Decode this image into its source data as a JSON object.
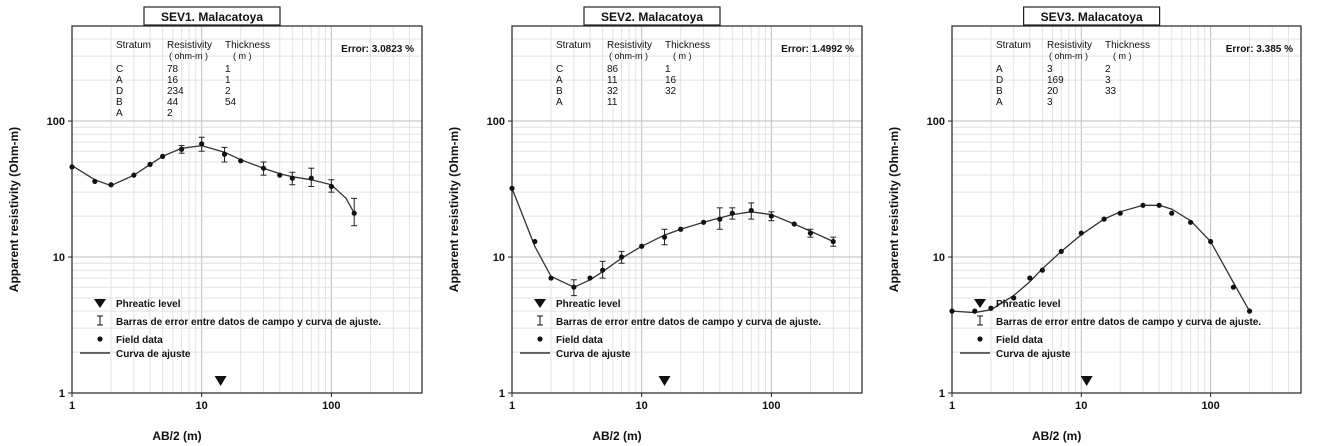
{
  "shared": {
    "legend": {
      "phreatic": "Phreatic level",
      "error_bars": "Barras de error entre datos de campo y curva de ajuste.",
      "field_data": "Field data",
      "fit_curve": "Curva de ajuste"
    },
    "table_headers": {
      "stratum": "Stratum",
      "resistivity": "Resistivity",
      "resistivity_unit": "( ohm-m )",
      "thickness": "Thickness",
      "thickness_unit": "( m )"
    }
  },
  "chart_data": [
    {
      "type": "scatter",
      "title": "SEV1. Malacatoya",
      "error_label": "Error: 3.0823 %",
      "xlabel": "AB/2 (m)",
      "ylabel": "Apparent resistivity (Ohm-m)",
      "x_scale": "log",
      "y_scale": "log",
      "xlim": [
        1,
        500
      ],
      "ylim": [
        1,
        500
      ],
      "x_ticks": [
        {
          "v": 1,
          "label": "1"
        },
        {
          "v": 10,
          "label": "10"
        },
        {
          "v": 100,
          "label": "100"
        }
      ],
      "y_ticks": [
        {
          "v": 1,
          "label": "1"
        },
        {
          "v": 10,
          "label": "10"
        },
        {
          "v": 100,
          "label": "100"
        }
      ],
      "grid": true,
      "legend_position": "bottom-left",
      "phreatic_x": 14,
      "layers": [
        {
          "stratum": "C",
          "resistivity": "78",
          "thickness": "1"
        },
        {
          "stratum": "A",
          "resistivity": "16",
          "thickness": "1"
        },
        {
          "stratum": "D",
          "resistivity": "234",
          "thickness": "2"
        },
        {
          "stratum": "B",
          "resistivity": "44",
          "thickness": "54"
        },
        {
          "stratum": "A",
          "resistivity": "2",
          "thickness": ""
        }
      ],
      "field_data": [
        {
          "x": 1,
          "y": 46
        },
        {
          "x": 1.5,
          "y": 36
        },
        {
          "x": 2,
          "y": 34
        },
        {
          "x": 3,
          "y": 40
        },
        {
          "x": 4,
          "y": 48
        },
        {
          "x": 5,
          "y": 55
        },
        {
          "x": 7,
          "y": 62,
          "err": [
            58,
            66
          ]
        },
        {
          "x": 10,
          "y": 68,
          "err": [
            60,
            76
          ]
        },
        {
          "x": 15,
          "y": 57,
          "err": [
            50,
            64
          ]
        },
        {
          "x": 20,
          "y": 51
        },
        {
          "x": 30,
          "y": 45,
          "err": [
            40,
            50
          ]
        },
        {
          "x": 40,
          "y": 40
        },
        {
          "x": 50,
          "y": 38,
          "err": [
            34,
            42
          ]
        },
        {
          "x": 70,
          "y": 38,
          "err": [
            33,
            45
          ]
        },
        {
          "x": 100,
          "y": 33,
          "err": [
            30,
            37
          ]
        },
        {
          "x": 150,
          "y": 21,
          "err": [
            17,
            27
          ]
        }
      ],
      "fit_curve": [
        [
          1,
          47
        ],
        [
          1.5,
          37
        ],
        [
          2,
          33.5
        ],
        [
          3,
          40
        ],
        [
          4,
          48
        ],
        [
          5,
          55
        ],
        [
          7,
          63
        ],
        [
          10,
          66
        ],
        [
          15,
          59
        ],
        [
          20,
          52
        ],
        [
          30,
          45
        ],
        [
          40,
          41
        ],
        [
          50,
          39
        ],
        [
          70,
          37
        ],
        [
          100,
          34
        ],
        [
          130,
          27
        ],
        [
          150,
          21
        ]
      ]
    },
    {
      "type": "scatter",
      "title": "SEV2. Malacatoya",
      "error_label": "Error: 1.4992 %",
      "xlabel": "AB/2 (m)",
      "ylabel": "Apparent resistivity (Ohm-m)",
      "x_scale": "log",
      "y_scale": "log",
      "xlim": [
        1,
        500
      ],
      "ylim": [
        1,
        500
      ],
      "x_ticks": [
        {
          "v": 1,
          "label": "1"
        },
        {
          "v": 10,
          "label": "10"
        },
        {
          "v": 100,
          "label": "100"
        }
      ],
      "y_ticks": [
        {
          "v": 1,
          "label": "1"
        },
        {
          "v": 10,
          "label": "10"
        },
        {
          "v": 100,
          "label": "100"
        }
      ],
      "grid": true,
      "legend_position": "bottom-left",
      "phreatic_x": 15,
      "layers": [
        {
          "stratum": "C",
          "resistivity": "86",
          "thickness": "1"
        },
        {
          "stratum": "A",
          "resistivity": "11",
          "thickness": "16"
        },
        {
          "stratum": "B",
          "resistivity": "32",
          "thickness": "32"
        },
        {
          "stratum": "A",
          "resistivity": "11",
          "thickness": ""
        }
      ],
      "field_data": [
        {
          "x": 1,
          "y": 32
        },
        {
          "x": 1.5,
          "y": 13
        },
        {
          "x": 2,
          "y": 7
        },
        {
          "x": 3,
          "y": 6,
          "err": [
            5.2,
            6.8
          ]
        },
        {
          "x": 4,
          "y": 7
        },
        {
          "x": 5,
          "y": 8,
          "err": [
            7,
            9.3
          ]
        },
        {
          "x": 7,
          "y": 10,
          "err": [
            9,
            11
          ]
        },
        {
          "x": 10,
          "y": 12
        },
        {
          "x": 15,
          "y": 14,
          "err": [
            12.3,
            16
          ]
        },
        {
          "x": 20,
          "y": 16
        },
        {
          "x": 30,
          "y": 18
        },
        {
          "x": 40,
          "y": 19,
          "err": [
            16,
            23
          ]
        },
        {
          "x": 50,
          "y": 21,
          "err": [
            19,
            23
          ]
        },
        {
          "x": 70,
          "y": 22,
          "err": [
            19,
            25
          ]
        },
        {
          "x": 100,
          "y": 20,
          "err": [
            18.5,
            21.5
          ]
        },
        {
          "x": 150,
          "y": 17.5
        },
        {
          "x": 200,
          "y": 15,
          "err": [
            14,
            16
          ]
        },
        {
          "x": 300,
          "y": 13,
          "err": [
            12,
            14
          ]
        }
      ],
      "fit_curve": [
        [
          1,
          32
        ],
        [
          1.5,
          12
        ],
        [
          2,
          7.2
        ],
        [
          3,
          6
        ],
        [
          4,
          6.8
        ],
        [
          5,
          7.8
        ],
        [
          7,
          9.8
        ],
        [
          10,
          12
        ],
        [
          15,
          14.5
        ],
        [
          20,
          16
        ],
        [
          30,
          18
        ],
        [
          50,
          20.5
        ],
        [
          70,
          21.5
        ],
        [
          100,
          20.5
        ],
        [
          150,
          17.5
        ],
        [
          200,
          15.5
        ],
        [
          300,
          13
        ]
      ]
    },
    {
      "type": "scatter",
      "title": "SEV3. Malacatoya",
      "error_label": "Error: 3.385 %",
      "xlabel": "AB/2 (m)",
      "ylabel": "Apparent resistivity (Ohm-m)",
      "x_scale": "log",
      "y_scale": "log",
      "xlim": [
        1,
        500
      ],
      "ylim": [
        1,
        500
      ],
      "x_ticks": [
        {
          "v": 1,
          "label": "1"
        },
        {
          "v": 10,
          "label": "10"
        },
        {
          "v": 100,
          "label": "100"
        }
      ],
      "y_ticks": [
        {
          "v": 1,
          "label": "1"
        },
        {
          "v": 10,
          "label": "10"
        },
        {
          "v": 100,
          "label": "100"
        }
      ],
      "grid": true,
      "legend_position": "bottom-left",
      "phreatic_x": 11,
      "layers": [
        {
          "stratum": "A",
          "resistivity": "3",
          "thickness": "2"
        },
        {
          "stratum": "D",
          "resistivity": "169",
          "thickness": "3"
        },
        {
          "stratum": "B",
          "resistivity": "20",
          "thickness": "33"
        },
        {
          "stratum": "A",
          "resistivity": "3",
          "thickness": ""
        }
      ],
      "field_data": [
        {
          "x": 1,
          "y": 4
        },
        {
          "x": 1.5,
          "y": 4
        },
        {
          "x": 2,
          "y": 4.2
        },
        {
          "x": 3,
          "y": 5
        },
        {
          "x": 4,
          "y": 7
        },
        {
          "x": 5,
          "y": 8
        },
        {
          "x": 7,
          "y": 11
        },
        {
          "x": 10,
          "y": 15
        },
        {
          "x": 15,
          "y": 19
        },
        {
          "x": 20,
          "y": 21
        },
        {
          "x": 30,
          "y": 24
        },
        {
          "x": 40,
          "y": 24
        },
        {
          "x": 50,
          "y": 21
        },
        {
          "x": 70,
          "y": 18
        },
        {
          "x": 100,
          "y": 13
        },
        {
          "x": 150,
          "y": 6
        },
        {
          "x": 200,
          "y": 4
        }
      ],
      "fit_curve": [
        [
          1,
          4
        ],
        [
          1.5,
          3.9
        ],
        [
          2,
          4.1
        ],
        [
          3,
          5.2
        ],
        [
          4,
          6.6
        ],
        [
          5,
          8.2
        ],
        [
          7,
          11
        ],
        [
          10,
          14.6
        ],
        [
          15,
          19
        ],
        [
          20,
          21.5
        ],
        [
          30,
          24
        ],
        [
          40,
          24
        ],
        [
          50,
          22.5
        ],
        [
          70,
          18.5
        ],
        [
          100,
          13
        ],
        [
          150,
          6.5
        ],
        [
          200,
          4
        ]
      ]
    }
  ]
}
